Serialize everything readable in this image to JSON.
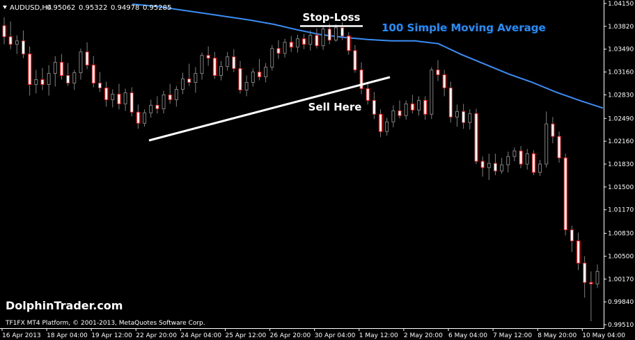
{
  "header": {
    "symbol_label": "AUDUSD,H4",
    "ohlc": [
      "0.95062",
      "0.95322",
      "0.94978",
      "0.95285"
    ]
  },
  "annotations": {
    "stop_loss": "Stop-Loss",
    "sell_here": "Sell Here",
    "ma_label": "100 Simple Moving Average",
    "brand": "DolphinTrader.com",
    "copyright": "TF1FX MT4 Platform, © 2001-2013, MetaQuotes Software Corp."
  },
  "colors": {
    "background": "#000000",
    "bull": "#ffffff",
    "bear": "#ff1a1a",
    "wick": "#808080",
    "ma": "#3a8ef6",
    "trendline": "#ffffff",
    "axis": "#ffffff",
    "ma_text": "#1e90ff"
  },
  "chart_data": {
    "type": "candlestick",
    "title": "AUDUSD,H4",
    "ylim": [
      0.9951,
      1.0414
    ],
    "y_ticks": [
      "1.04150",
      "1.03820",
      "1.03490",
      "1.03160",
      "1.02830",
      "1.02490",
      "1.02160",
      "1.01830",
      "1.01500",
      "1.01170",
      "1.00830",
      "1.00500",
      "1.00170",
      "0.99840",
      "0.99510"
    ],
    "x_ticks": [
      "16 Apr 2013",
      "18 Apr 04:00",
      "19 Apr 12:00",
      "22 Apr 20:00",
      "24 Apr 04:00",
      "25 Apr 12:00",
      "26 Apr 20:00",
      "30 Apr 04:00",
      "1 May 12:00",
      "2 May 20:00",
      "6 May 04:00",
      "7 May 12:00",
      "8 May 20:00",
      "10 May 04:00"
    ],
    "candles": [
      [
        1.0383,
        1.0395,
        1.0356,
        1.0367
      ],
      [
        1.0367,
        1.0389,
        1.0349,
        1.0356
      ],
      [
        1.0356,
        1.0369,
        1.0342,
        1.0361
      ],
      [
        1.0361,
        1.0376,
        1.0336,
        1.0342
      ],
      [
        1.0342,
        1.0353,
        1.0282,
        1.0298
      ],
      [
        1.0298,
        1.0319,
        1.0285,
        1.0305
      ],
      [
        1.0305,
        1.0322,
        1.029,
        1.0298
      ],
      [
        1.0298,
        1.0326,
        1.0282,
        1.0314
      ],
      [
        1.0314,
        1.0339,
        1.0295,
        1.033
      ],
      [
        1.033,
        1.0342,
        1.0305,
        1.0311
      ],
      [
        1.0311,
        1.0329,
        1.0296,
        1.03
      ],
      [
        1.03,
        1.0319,
        1.029,
        1.0315
      ],
      [
        1.0315,
        1.035,
        1.0305,
        1.0345
      ],
      [
        1.0345,
        1.0359,
        1.032,
        1.0326
      ],
      [
        1.0326,
        1.0339,
        1.0294,
        1.03
      ],
      [
        1.03,
        1.0316,
        1.0287,
        1.0293
      ],
      [
        1.0293,
        1.0302,
        1.0266,
        1.0276
      ],
      [
        1.0276,
        1.0291,
        1.0265,
        1.0284
      ],
      [
        1.0284,
        1.0299,
        1.0262,
        1.027
      ],
      [
        1.027,
        1.0292,
        1.026,
        1.0286
      ],
      [
        1.0286,
        1.0294,
        1.0252,
        1.0258
      ],
      [
        1.0258,
        1.0269,
        1.0234,
        1.0242
      ],
      [
        1.0242,
        1.0262,
        1.0237,
        1.0257
      ],
      [
        1.0257,
        1.0276,
        1.025,
        1.0268
      ],
      [
        1.0268,
        1.0281,
        1.0256,
        1.0263
      ],
      [
        1.0263,
        1.0289,
        1.0256,
        1.0283
      ],
      [
        1.0283,
        1.0299,
        1.027,
        1.0276
      ],
      [
        1.0276,
        1.0296,
        1.0266,
        1.0291
      ],
      [
        1.0291,
        1.0315,
        1.0284,
        1.0306
      ],
      [
        1.0306,
        1.0328,
        1.0296,
        1.0301
      ],
      [
        1.0301,
        1.0323,
        1.0286,
        1.0314
      ],
      [
        1.0314,
        1.0344,
        1.0305,
        1.034
      ],
      [
        1.034,
        1.0353,
        1.0325,
        1.0336
      ],
      [
        1.0336,
        1.0345,
        1.0306,
        1.0311
      ],
      [
        1.0311,
        1.0332,
        1.0304,
        1.0324
      ],
      [
        1.0324,
        1.0345,
        1.0318,
        1.0338
      ],
      [
        1.0338,
        1.0349,
        1.0316,
        1.0321
      ],
      [
        1.0321,
        1.0332,
        1.0285,
        1.029
      ],
      [
        1.029,
        1.0311,
        1.0281,
        1.0301
      ],
      [
        1.0301,
        1.0321,
        1.0295,
        1.0316
      ],
      [
        1.0316,
        1.0335,
        1.0304,
        1.0309
      ],
      [
        1.0309,
        1.0329,
        1.0301,
        1.0323
      ],
      [
        1.0323,
        1.0355,
        1.0318,
        1.035
      ],
      [
        1.035,
        1.0362,
        1.0335,
        1.0343
      ],
      [
        1.0343,
        1.0364,
        1.0337,
        1.0359
      ],
      [
        1.0359,
        1.0368,
        1.0345,
        1.0352
      ],
      [
        1.0352,
        1.037,
        1.0344,
        1.0364
      ],
      [
        1.0364,
        1.0371,
        1.0349,
        1.0356
      ],
      [
        1.0356,
        1.0376,
        1.0347,
        1.0369
      ],
      [
        1.0369,
        1.0379,
        1.035,
        1.0354
      ],
      [
        1.0354,
        1.0384,
        1.0348,
        1.0378
      ],
      [
        1.0378,
        1.0386,
        1.0356,
        1.0362
      ],
      [
        1.0362,
        1.0385,
        1.036,
        1.038
      ],
      [
        1.038,
        1.0388,
        1.0362,
        1.0368
      ],
      [
        1.0368,
        1.0374,
        1.0341,
        1.0347
      ],
      [
        1.0347,
        1.0355,
        1.0315,
        1.0319
      ],
      [
        1.0319,
        1.033,
        1.0284,
        1.0292
      ],
      [
        1.0292,
        1.0302,
        1.0269,
        1.0275
      ],
      [
        1.0275,
        1.0287,
        1.0248,
        1.0255
      ],
      [
        1.0255,
        1.0262,
        1.0222,
        1.023
      ],
      [
        1.023,
        1.025,
        1.0224,
        1.0244
      ],
      [
        1.0244,
        1.0268,
        1.0236,
        1.026
      ],
      [
        1.026,
        1.0275,
        1.0249,
        1.0253
      ],
      [
        1.0253,
        1.0275,
        1.0247,
        1.027
      ],
      [
        1.027,
        1.0283,
        1.0256,
        1.0261
      ],
      [
        1.0261,
        1.0281,
        1.0253,
        1.0275
      ],
      [
        1.0275,
        1.0281,
        1.0247,
        1.0255
      ],
      [
        1.0255,
        1.0323,
        1.0248,
        1.0319
      ],
      [
        1.0319,
        1.0333,
        1.0303,
        1.0312
      ],
      [
        1.0312,
        1.0319,
        1.0281,
        1.0293
      ],
      [
        1.0293,
        1.0302,
        1.0243,
        1.0251
      ],
      [
        1.0251,
        1.0269,
        1.0237,
        1.0259
      ],
      [
        1.0259,
        1.027,
        1.0234,
        1.0243
      ],
      [
        1.0243,
        1.0262,
        1.0233,
        1.0256
      ],
      [
        1.0256,
        1.0263,
        1.0183,
        1.0187
      ],
      [
        1.0187,
        1.0194,
        1.0165,
        1.0178
      ],
      [
        1.0178,
        1.0198,
        1.016,
        1.0184
      ],
      [
        1.0184,
        1.0198,
        1.0167,
        1.0173
      ],
      [
        1.0173,
        1.0192,
        1.0169,
        1.0182
      ],
      [
        1.0182,
        1.0201,
        1.0171,
        1.0194
      ],
      [
        1.0194,
        1.0207,
        1.0187,
        1.0202
      ],
      [
        1.0202,
        1.0209,
        1.0177,
        1.0183
      ],
      [
        1.0183,
        1.0205,
        1.0175,
        1.0198
      ],
      [
        1.0198,
        1.0203,
        1.0167,
        1.0171
      ],
      [
        1.0171,
        1.0189,
        1.0166,
        1.0183
      ],
      [
        1.0183,
        1.0259,
        1.0178,
        1.0241
      ],
      [
        1.0241,
        1.0251,
        1.0213,
        1.0223
      ],
      [
        1.0223,
        1.023,
        1.0185,
        1.0192
      ],
      [
        1.0192,
        1.0198,
        1.008,
        1.0088
      ],
      [
        1.0088,
        1.0094,
        1.0056,
        1.0072
      ],
      [
        1.0072,
        1.0084,
        1.003,
        1.004
      ],
      [
        1.004,
        1.005,
        0.999,
        1.0012
      ],
      [
        1.0012,
        1.0028,
        0.9956,
        1.001
      ],
      [
        1.001,
        1.0038,
        1.0004,
        1.0028
      ]
    ],
    "ma_100": [
      1.0414,
      1.0411,
      1.0406,
      1.0401,
      1.0396,
      1.0391,
      1.0385,
      1.0377,
      1.037,
      1.0366,
      1.0363,
      1.0361,
      1.0361,
      1.0357,
      1.0341,
      1.0327,
      1.0313,
      1.0301,
      1.0287,
      1.0275,
      1.0264
    ],
    "trendline": {
      "from": [
        1.0221
      ],
      "to": [
        1.0311
      ]
    }
  }
}
